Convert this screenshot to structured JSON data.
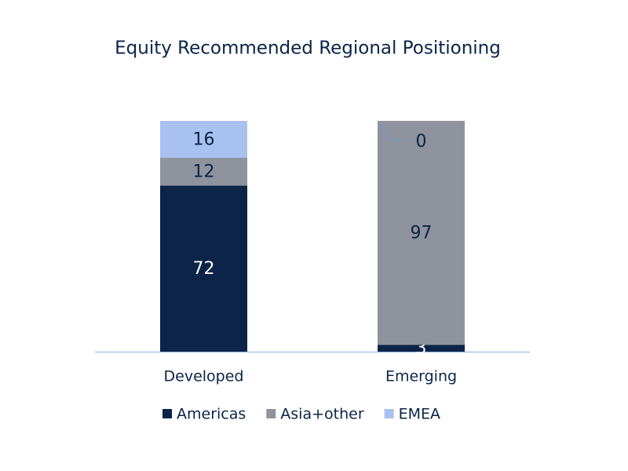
{
  "chart_data": {
    "type": "stacked_bar",
    "title": "Equity Recommended Regional Positioning",
    "categories": [
      "Developed",
      "Emerging"
    ],
    "series": [
      {
        "name": "Americas",
        "color": "#0b2447",
        "values": [
          72,
          3
        ]
      },
      {
        "name": "Asia+other",
        "color": "#8e939d",
        "values": [
          12,
          97
        ]
      },
      {
        "name": "EMEA",
        "color": "#a8c1f0",
        "values": [
          16,
          0
        ]
      }
    ],
    "ylim": [
      0,
      100
    ],
    "legend": "bottom"
  }
}
